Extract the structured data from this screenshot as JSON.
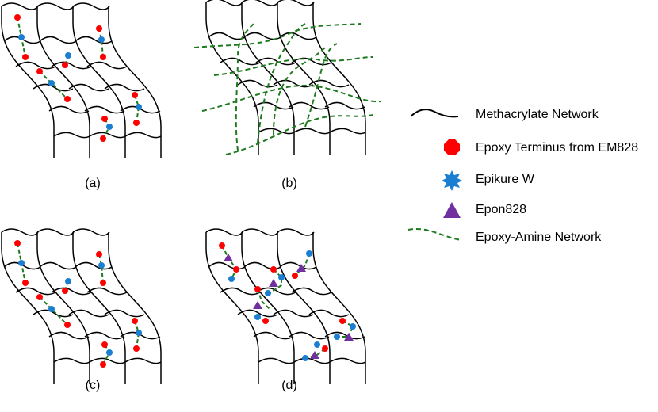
{
  "panels": [
    {
      "label": "(a)"
    },
    {
      "label": "(b)"
    },
    {
      "label": "(c)"
    },
    {
      "label": "(d)"
    }
  ],
  "legend": [
    {
      "label": "Methacrylate Network"
    },
    {
      "label": "Epoxy Terminus from EM828"
    },
    {
      "label": "Epikure W"
    },
    {
      "label": "Epon828"
    },
    {
      "label": "Epoxy-Amine Network"
    }
  ]
}
